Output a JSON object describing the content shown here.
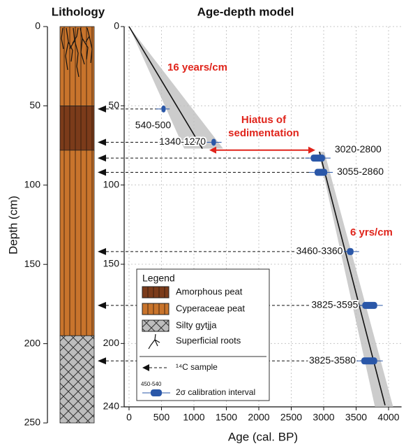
{
  "chart_data": [
    {
      "type": "lithology",
      "title": "Lithology",
      "ylabel": "Depth (cm)",
      "ylim": [
        0,
        250
      ],
      "yticks": [
        0,
        50,
        100,
        150,
        200,
        250
      ],
      "facies": [
        {
          "name": "Amorphous peat",
          "color": "#7b3b1a",
          "pattern": "stripes",
          "intervals": [
            [
              50,
              78
            ]
          ]
        },
        {
          "name": "Cyperaceae peat",
          "color": "#c8742c",
          "pattern": "stripes",
          "intervals": [
            [
              0,
              50
            ],
            [
              78,
              195
            ]
          ]
        },
        {
          "name": "Silty gytjja",
          "color": "#bdbdbd",
          "pattern": "crosshatch",
          "intervals": [
            [
              195,
              250
            ]
          ]
        }
      ]
    },
    {
      "type": "age-depth",
      "title": "Age-depth model",
      "xlabel": "Age (cal. BP)",
      "xlim": [
        -75,
        4200
      ],
      "xticks": [
        0,
        500,
        1000,
        1500,
        2000,
        2500,
        3000,
        3500,
        4000
      ],
      "ylim": [
        0,
        240
      ],
      "yticks": [
        0,
        50,
        100,
        150,
        200,
        240
      ],
      "grid": true,
      "samples": [
        {
          "depth": 52,
          "range": [
            500,
            540
          ],
          "label": "540-500"
        },
        {
          "depth": 73,
          "range": [
            1270,
            1340
          ],
          "label": "1340-1270"
        },
        {
          "depth": 83,
          "range": [
            2800,
            3020
          ],
          "label": "3020-2800"
        },
        {
          "depth": 92,
          "range": [
            2860,
            3055
          ],
          "label": "3055-2860"
        },
        {
          "depth": 142,
          "range": [
            3360,
            3460
          ],
          "label": "3460-3360"
        },
        {
          "depth": 176,
          "range": [
            3595,
            3825
          ],
          "label": "3825-3595"
        },
        {
          "depth": 211,
          "range": [
            3580,
            3825
          ],
          "label": "3825-3580"
        }
      ],
      "model": [
        {
          "x": [
            0,
            1130
          ],
          "y": [
            0,
            77
          ]
        },
        {
          "x": [
            2935,
            3946
          ],
          "y": [
            79,
            239
          ]
        }
      ],
      "envelope": [
        {
          "x": [
            0,
            1450,
            850
          ],
          "y": [
            0,
            77,
            77
          ]
        },
        {
          "x": [
            2920,
            3010,
            4070,
            3790
          ],
          "y": [
            79,
            79,
            240,
            240
          ]
        }
      ],
      "rates": [
        "16 years/cm",
        "6 yrs/cm"
      ],
      "hiatus": {
        "text": [
          "Hiatus of",
          "sedimentation"
        ],
        "x": [
          1237,
          2871
        ],
        "depth": 78
      },
      "legend": {
        "title": "Legend",
        "roots": "Superficial roots",
        "sample": "¹⁴C sample",
        "calibration": "2σ calibration interval",
        "calibration_example": "450-540"
      }
    }
  ]
}
